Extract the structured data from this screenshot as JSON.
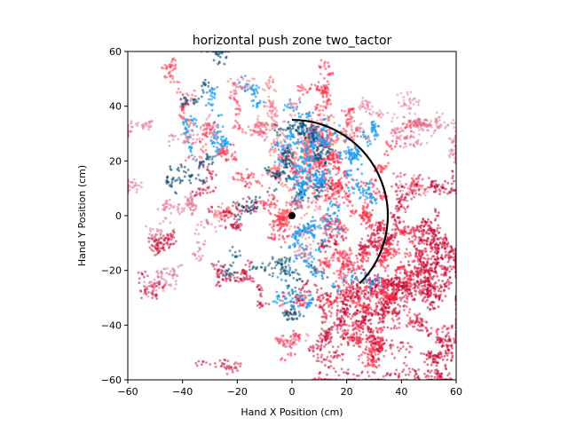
{
  "chart_data": {
    "type": "scatter",
    "title": "horizontal push zone two_tactor",
    "xlabel": "Hand X Position (cm)",
    "ylabel": "Hand Y Position (cm)",
    "xlim": [
      -60,
      60
    ],
    "ylim": [
      -60,
      60
    ],
    "xticks": [
      -60,
      -40,
      -20,
      0,
      20,
      40,
      60
    ],
    "yticks": [
      -60,
      -40,
      -20,
      0,
      20,
      40,
      60
    ],
    "xtick_labels": [
      "−60",
      "−40",
      "−20",
      "0",
      "20",
      "40",
      "60"
    ],
    "ytick_labels": [
      "−60",
      "−40",
      "−20",
      "0",
      "20",
      "40",
      "60"
    ],
    "grid": false,
    "legend": "none",
    "colors": {
      "crimson": "#c8002e",
      "red": "#ff2d48",
      "salmon": "#ff6a6a",
      "pink": "#e06a8a",
      "blue": "#1e9bf0",
      "navy": "#0a4a70"
    },
    "clusters": [
      {
        "color": "crimson",
        "cx": 40,
        "cy": -25,
        "sx": 14,
        "sy": 16,
        "n": 1400,
        "opacity": 0.55
      },
      {
        "color": "red",
        "cx": 25,
        "cy": -15,
        "sx": 14,
        "sy": 20,
        "n": 1100,
        "opacity": 0.6
      },
      {
        "color": "crimson",
        "cx": 30,
        "cy": -48,
        "sx": 16,
        "sy": 8,
        "n": 500,
        "opacity": 0.5
      },
      {
        "color": "red",
        "cx": 10,
        "cy": 10,
        "sx": 12,
        "sy": 18,
        "n": 900,
        "opacity": 0.55
      },
      {
        "color": "salmon",
        "cx": 5,
        "cy": 20,
        "sx": 14,
        "sy": 14,
        "n": 500,
        "opacity": 0.5
      },
      {
        "color": "blue",
        "cx": 5,
        "cy": 18,
        "sx": 12,
        "sy": 16,
        "n": 700,
        "opacity": 0.7
      },
      {
        "color": "blue",
        "cx": 8,
        "cy": -20,
        "sx": 8,
        "sy": 10,
        "n": 250,
        "opacity": 0.7
      },
      {
        "color": "navy",
        "cx": -10,
        "cy": 15,
        "sx": 14,
        "sy": 20,
        "n": 450,
        "opacity": 0.6
      },
      {
        "color": "pink",
        "cx": -25,
        "cy": 5,
        "sx": 18,
        "sy": 24,
        "n": 600,
        "opacity": 0.5
      },
      {
        "color": "crimson",
        "cx": -35,
        "cy": -25,
        "sx": 14,
        "sy": 18,
        "n": 400,
        "opacity": 0.5
      },
      {
        "color": "pink",
        "cx": 35,
        "cy": 30,
        "sx": 18,
        "sy": 12,
        "n": 450,
        "opacity": 0.45
      },
      {
        "color": "crimson",
        "cx": 50,
        "cy": 5,
        "sx": 8,
        "sy": 25,
        "n": 350,
        "opacity": 0.5
      },
      {
        "color": "navy",
        "cx": -20,
        "cy": -20,
        "sx": 10,
        "sy": 12,
        "n": 150,
        "opacity": 0.55
      },
      {
        "color": "red",
        "cx": -15,
        "cy": 35,
        "sx": 14,
        "sy": 6,
        "n": 200,
        "opacity": 0.5
      },
      {
        "color": "blue",
        "cx": -45,
        "cy": 28,
        "sx": 8,
        "sy": 4,
        "n": 80,
        "opacity": 0.7
      }
    ],
    "zone_arc": {
      "cx": 0,
      "cy": 0,
      "radius": 35,
      "start_deg": 90,
      "end_deg": -45,
      "color": "#000000"
    },
    "center_point": {
      "x": 0,
      "y": 0,
      "color": "#000000"
    }
  }
}
